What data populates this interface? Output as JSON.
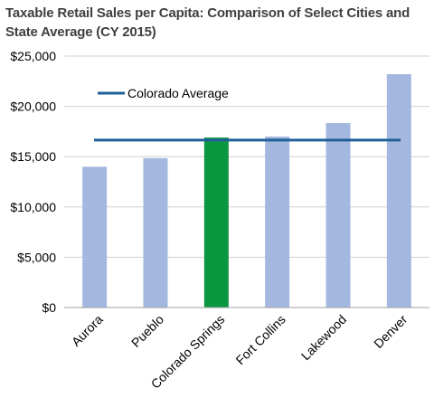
{
  "chart_data": {
    "type": "bar",
    "title": "Taxable Retail Sales per Capita: Comparison of Select Cities and State Average (CY 2015)",
    "categories": [
      "Aurora",
      "Pueblo",
      "Colorado Springs",
      "Fort Collins",
      "Lakewood",
      "Denver"
    ],
    "series": [
      {
        "values": [
          14000,
          14850,
          16900,
          17000,
          18350,
          23200
        ]
      }
    ],
    "reference_line": {
      "name": "Colorado Average",
      "value": 16650,
      "color": "#1f5f9a"
    },
    "yticks": [
      "$0",
      "$5,000",
      "$10,000",
      "$15,000",
      "$20,000",
      "$25,000"
    ],
    "ylim": [
      0,
      25000
    ],
    "xlabel": "",
    "ylabel": "",
    "grid": true,
    "legend_position": "top-left",
    "colors": {
      "bar": "#a4b8df",
      "highlight_bar": "#0b9640",
      "highlight_category": "Colorado Springs",
      "gridline": "#d0d0d0",
      "axis": "#a0a0a0"
    }
  }
}
